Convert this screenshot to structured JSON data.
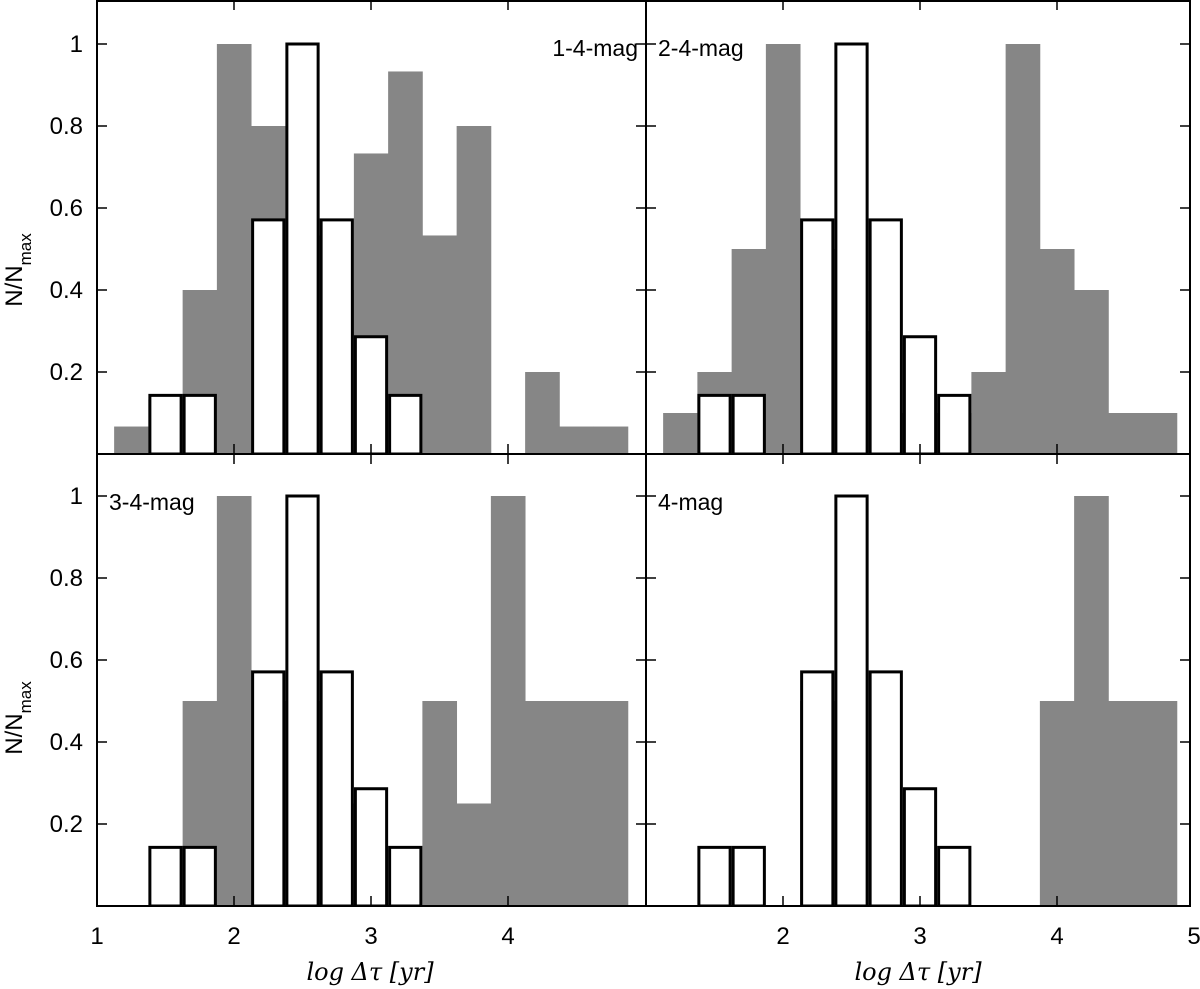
{
  "chart_data": {
    "type": "histogram",
    "layout": "2x2 panels",
    "x_axis": {
      "label": "log Δτ [yr]",
      "range": [
        1,
        5
      ],
      "ticks_left_panels": [
        "1",
        "2",
        "3",
        "4"
      ],
      "ticks_right_panels": [
        "2",
        "3",
        "4",
        "5"
      ]
    },
    "y_axis": {
      "label": "N/N",
      "label_sub": "max",
      "range": [
        0,
        1.1
      ],
      "ticks": [
        "0.2",
        "0.4",
        "0.6",
        "0.8",
        "1"
      ]
    },
    "bin_width": 0.25,
    "outline_series": {
      "name": "open histogram",
      "bin_starts": [
        1.375,
        1.625,
        2.125,
        2.375,
        2.625,
        2.875,
        3.125
      ],
      "values": [
        0.143,
        0.143,
        0.571,
        1.0,
        0.571,
        0.286,
        0.143
      ]
    },
    "panels": [
      {
        "label": "1-4-mag",
        "label_position": "top-right",
        "filled_series": {
          "bin_starts": [
            1.125,
            1.375,
            1.625,
            1.875,
            2.125,
            2.375,
            2.625,
            2.875,
            3.125,
            3.375,
            3.625,
            4.125,
            4.375,
            4.625
          ],
          "values": [
            0.067,
            0.133,
            0.4,
            1.0,
            0.8,
            0.533,
            0.4,
            0.733,
            0.933,
            0.533,
            0.8,
            0.2,
            0.067,
            0.067
          ]
        }
      },
      {
        "label": "2-4-mag",
        "label_position": "top-left",
        "filled_series": {
          "bin_starts": [
            1.125,
            1.375,
            1.625,
            1.875,
            2.125,
            2.375,
            2.625,
            2.875,
            3.125,
            3.375,
            3.625,
            3.875,
            4.125,
            4.375,
            4.625
          ],
          "values": [
            0.1,
            0.2,
            0.5,
            1.0,
            0.5,
            0.3,
            0.1,
            0.1,
            0.1,
            0.2,
            1.0,
            0.5,
            0.4,
            0.1,
            0.1
          ]
        }
      },
      {
        "label": "3-4-mag",
        "label_position": "top-left",
        "filled_series": {
          "bin_starts": [
            1.625,
            1.875,
            2.125,
            2.375,
            2.625,
            3.375,
            3.625,
            3.875,
            4.125,
            4.375,
            4.625
          ],
          "values": [
            0.5,
            1.0,
            0.5,
            0.5,
            0.25,
            0.5,
            0.25,
            1.0,
            0.5,
            0.5,
            0.5
          ]
        }
      },
      {
        "label": "4-mag",
        "label_position": "top-left",
        "filled_series": {
          "bin_starts": [
            2.125,
            3.875,
            4.125,
            4.375,
            4.625
          ],
          "values": [
            0.5,
            0.5,
            1.0,
            0.5,
            0.5
          ]
        }
      }
    ],
    "colors": {
      "filled": "#868686",
      "outline": "#000000",
      "outline_fill": "#ffffff"
    }
  }
}
